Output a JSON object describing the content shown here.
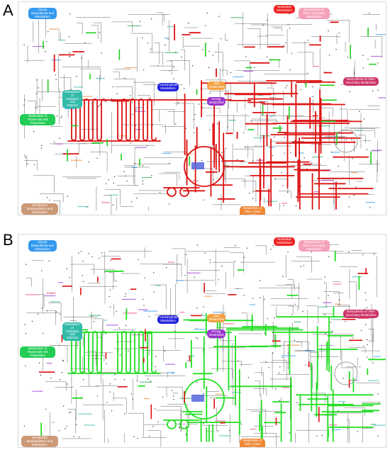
{
  "panels": [
    {
      "letter": "A",
      "highlight_color": "#dd1111",
      "secondary_color": "#22cc22",
      "labels": {
        "glycan": "Glycan Biosynthesis and Metabolism",
        "nucleotide": "Nucleotide Metabolism",
        "secondary": "Biosynthesis of Other Secondary Metabolites",
        "carb": "Carbohydrate Metabolism",
        "lipid": "Lipid Metabolism",
        "energy": "Energy Metabolism",
        "terpenoids": "Metabolism of Terpenoids and Polyketides",
        "cofactors": "Metabolism of Cofactors and Vitamins",
        "xeno": "Xenobiotics Biodegradation and Metabolism",
        "aminoacid": "Amino Acid Metabolism",
        "otheramino": "Metabolism of Other Amino Acids"
      }
    },
    {
      "letter": "B",
      "highlight_color": "#22dd22",
      "secondary_color": "#dd1111",
      "labels": {
        "glycan": "Glycan Biosynthesis and Metabolism",
        "nucleotide": "Nucleotide Metabolism",
        "secondary": "Biosynthesis of Other Secondary Metabolites",
        "carb": "Carbohydrate Metabolism",
        "lipid": "Lipid Metabolism",
        "energy": "Energy Metabolism",
        "terpenoids": "Metabolism of Terpenoids and Polyketides",
        "cofactors": "Metabolism of Cofactors and Vitamins",
        "xeno": "Xenobiotics Biodegradation and Metabolism",
        "aminoacid": "Amino Acid Metabolism",
        "otheramino": "Metabolism of Other Amino Acids"
      }
    }
  ],
  "category_colors": {
    "glycan": "#3399ee",
    "nucleotide": "#ee2222",
    "secondary": "#ee4477",
    "secondary_pale": "#f4a0b8",
    "carb": "#2222dd",
    "lipid": "#f4a040",
    "energy": "#9933cc",
    "terpenoids": "#22cc55",
    "cofactors": "#33bbaa",
    "xeno": "#cc9977",
    "aminoacid": "#ee8833"
  }
}
